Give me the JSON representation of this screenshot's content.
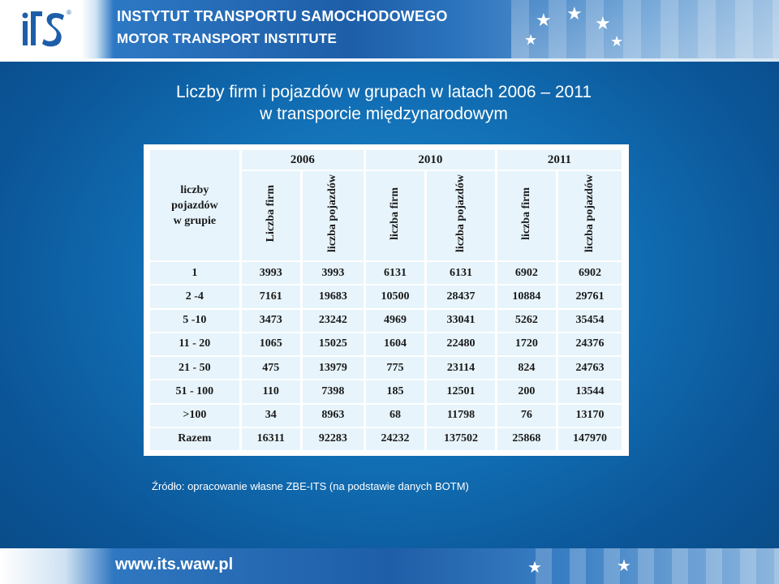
{
  "header": {
    "title_pl": "INSTYTUT TRANSPORTU SAMOCHODOWEGO",
    "title_en": "MOTOR TRANSPORT INSTITUTE"
  },
  "colors": {
    "background": "#1270b6",
    "table_cell": "#e7f4fb",
    "text_light": "#ffffff"
  },
  "slide": {
    "title_line1": "Liczby firm i pojazdów w grupach w latach 2006 – 2011",
    "title_line2": "w transporcie międzynarodowym",
    "source": "Źródło: opracowanie własne ZBE-ITS (na podstawie danych BOTM)"
  },
  "table": {
    "corner_lines": [
      "liczby",
      "pojazdów",
      "w grupie"
    ],
    "years": [
      "2006",
      "2010",
      "2011"
    ],
    "subheaders": [
      "Liczba firm",
      "liczba pojazdów",
      "liczba firm",
      "liczba pojazdów",
      "liczba firm",
      "liczba pojazdów"
    ],
    "rows": [
      {
        "group": "1",
        "values": [
          "3993",
          "3993",
          "6131",
          "6131",
          "6902",
          "6902"
        ]
      },
      {
        "group": "2 -4",
        "values": [
          "7161",
          "19683",
          "10500",
          "28437",
          "10884",
          "29761"
        ]
      },
      {
        "group": "5 -10",
        "values": [
          "3473",
          "23242",
          "4969",
          "33041",
          "5262",
          "35454"
        ]
      },
      {
        "group": "11 - 20",
        "values": [
          "1065",
          "15025",
          "1604",
          "22480",
          "1720",
          "24376"
        ]
      },
      {
        "group": "21 - 50",
        "values": [
          "475",
          "13979",
          "775",
          "23114",
          "824",
          "24763"
        ]
      },
      {
        "group": "51 - 100",
        "values": [
          "110",
          "7398",
          "185",
          "12501",
          "200",
          "13544"
        ]
      },
      {
        "group": ">100",
        "values": [
          "34",
          "8963",
          "68",
          "11798",
          "76",
          "13170"
        ]
      },
      {
        "group": "Razem",
        "values": [
          "16311",
          "92283",
          "24232",
          "137502",
          "25868",
          "147970"
        ]
      }
    ]
  },
  "footer": {
    "url": "www.its.waw.pl"
  }
}
